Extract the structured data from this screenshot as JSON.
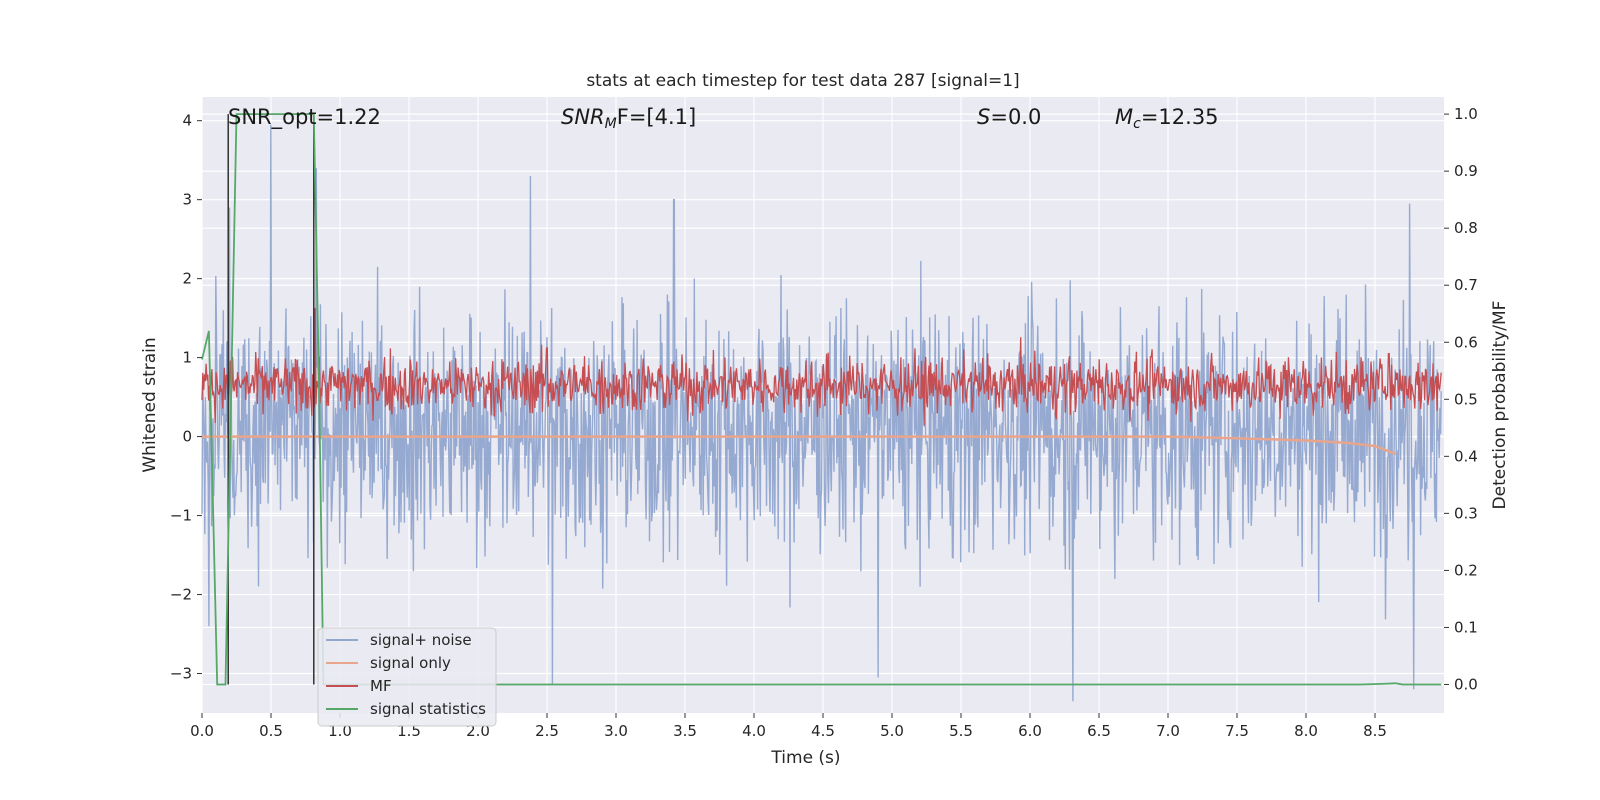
{
  "chart_data": {
    "type": "line",
    "title": "stats at each timestep for test data 287 [signal=1]",
    "xlabel": "Time (s)",
    "ylabel_left": "Whitened strain",
    "ylabel_right": "Detection probability/MF",
    "xlim": [
      0.0,
      9.0
    ],
    "ylim_left": [
      -3.5,
      4.3
    ],
    "ylim_right": [
      -0.05,
      1.03
    ],
    "x_ticks": [
      "0.0",
      "0.5",
      "1.0",
      "1.5",
      "2.0",
      "2.5",
      "3.0",
      "3.5",
      "4.0",
      "4.5",
      "5.0",
      "5.5",
      "6.0",
      "6.5",
      "7.0",
      "7.5",
      "8.0",
      "8.5"
    ],
    "y_left_ticks": [
      "−3",
      "−2",
      "−1",
      "0",
      "1",
      "2",
      "3",
      "4"
    ],
    "y_right_ticks": [
      "0.0",
      "0.1",
      "0.2",
      "0.3",
      "0.4",
      "0.5",
      "0.6",
      "0.7",
      "0.8",
      "0.9",
      "1.0"
    ],
    "grid": true,
    "legend_placement": "lower-left",
    "annotations": {
      "snr_opt": "SNR_opt=1.22",
      "snr_mf_main": "SNR",
      "snr_mf_sub": "M",
      "snr_mf_rest": "F=[4.1]",
      "s_main": "S",
      "s_rest": "=0.0",
      "mc_main": "M",
      "mc_sub": "c",
      "mc_rest": "=12.35"
    },
    "series": [
      {
        "name": "signal+ noise",
        "color": "#91a7cf",
        "axis": "left",
        "typical_envelope": [
          -1.6,
          1.8
        ],
        "notable_peaks": [
          [
            0.2,
            2.9
          ],
          [
            0.5,
            3.95
          ],
          [
            0.83,
            3.4
          ],
          [
            2.38,
            3.3
          ],
          [
            3.42,
            3.0
          ],
          [
            8.75,
            2.95
          ]
        ],
        "notable_troughs": [
          [
            0.05,
            -2.4
          ],
          [
            2.54,
            -3.15
          ],
          [
            4.9,
            -3.05
          ],
          [
            6.31,
            -3.35
          ],
          [
            8.78,
            -3.2
          ]
        ]
      },
      {
        "name": "signal only",
        "color": "#e8a58c",
        "axis": "left",
        "x": [
          0.0,
          7.0,
          7.5,
          8.0,
          8.3,
          8.5,
          8.62,
          8.65
        ],
        "y": [
          0.0,
          0.0,
          -0.02,
          -0.05,
          -0.08,
          -0.12,
          -0.2,
          -0.22
        ]
      },
      {
        "name": "MF",
        "color": "#c44e52",
        "axis": "right",
        "typical_envelope": [
          0.47,
          0.58
        ],
        "notable_peaks": [
          [
            0.82,
            0.66
          ],
          [
            2.5,
            0.59
          ],
          [
            8.6,
            0.58
          ]
        ]
      },
      {
        "name": "signal statistics",
        "color": "#55a868",
        "axis": "right",
        "x": [
          0.0,
          0.05,
          0.11,
          0.17,
          0.25,
          0.3,
          0.81,
          0.85,
          0.88,
          0.93,
          1.0,
          8.4,
          8.55,
          8.65,
          8.7,
          8.98
        ],
        "y": [
          0.57,
          0.62,
          0.0,
          0.0,
          1.0,
          1.0,
          1.0,
          0.5,
          0.0,
          0.0,
          0.0,
          0.0,
          0.001,
          0.002,
          0.0,
          0.0
        ]
      }
    ],
    "vertical_markers": [
      {
        "x": 0.19,
        "color": "#333333"
      },
      {
        "x": 0.81,
        "color": "#333333"
      }
    ]
  }
}
